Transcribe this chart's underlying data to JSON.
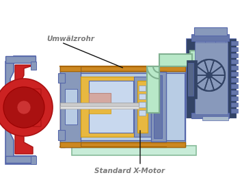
{
  "bg_color": "#ffffff",
  "label_umwaelzrohr": "Umwälzrohr",
  "label_xmotor": "Standard X-Motor",
  "label_color": "#7a7a7a",
  "pump_body_color": "#8899bb",
  "pump_body_edge": "#5566aa",
  "pump_body_light": "#aabbdd",
  "orange_pipe_fill": "#cc8822",
  "orange_pipe_edge": "#aa6600",
  "inner_blue": "#b8cce4",
  "inner_blue2": "#c8d8ee",
  "rotor_yellow": "#e8b840",
  "rotor_yellow2": "#cc9910",
  "red_fill": "#cc2222",
  "red_dark": "#aa1111",
  "red_mid": "#bb2222",
  "green_pipe": "#b8e8c8",
  "green_pipe_edge": "#80b090",
  "shaft_gray": "#cccccc",
  "base_fill": "#c8ecd8",
  "base_edge": "#88bb99",
  "pink_fill": "#d4a8a0",
  "motor_blue": "#8899bb",
  "motor_dark": "#334466",
  "motor_mid": "#6677aa",
  "black_line": "#111111"
}
